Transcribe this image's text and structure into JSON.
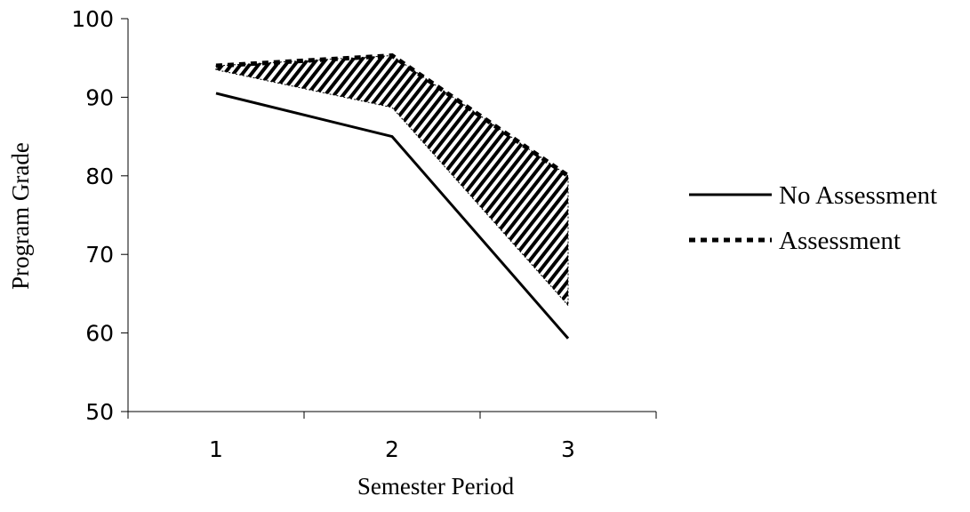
{
  "chart_data": {
    "type": "line",
    "title": "",
    "xlabel": "Semester Period",
    "ylabel": "Program Grade",
    "x": [
      1,
      2,
      3
    ],
    "xlim": [
      0.5,
      3.5
    ],
    "ylim": [
      50,
      100
    ],
    "yticks": [
      50,
      60,
      70,
      80,
      90,
      100
    ],
    "xticks": [
      1,
      2,
      3
    ],
    "grid": false,
    "legend_position": "right",
    "series": [
      {
        "name": "No Assessment",
        "style": "solid",
        "values": [
          90.5,
          85,
          59.3
        ]
      },
      {
        "name": "Assessment",
        "style": "dashed",
        "values": [
          94,
          95.3,
          80
        ]
      }
    ],
    "shaded_band": {
      "pattern": "diagonal-hatch",
      "upper": [
        94,
        95.3,
        80
      ],
      "lower": [
        93.5,
        88.7,
        63.5
      ]
    }
  }
}
